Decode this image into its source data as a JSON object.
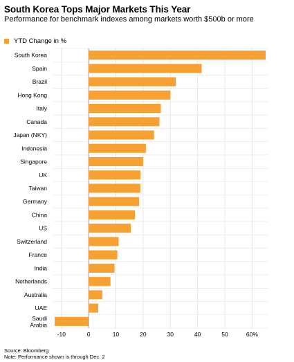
{
  "title": "South Korea Tops Major Markets This Year",
  "subtitle": "Performance for benchmark indexes among markets worth $500b or more",
  "legend": {
    "label": "YTD Change in %"
  },
  "footer": {
    "source": "Source: Bloomberg",
    "note": "Note: Performance shown is through Dec. 2"
  },
  "colors": {
    "bar": "#f7a133",
    "grid": "#e3e3e3",
    "axis": "#999999"
  },
  "chart_data": {
    "type": "bar",
    "orientation": "horizontal",
    "categories": [
      "South Korea",
      "Spain",
      "Brazil",
      "Hong Kong",
      "Italy",
      "Canada",
      "Japan (NKY)",
      "Indonesia",
      "Singapore",
      "UK",
      "Taiwan",
      "Germany",
      "China",
      "US",
      "Switzerland",
      "France",
      "India",
      "Netherlands",
      "Australia",
      "UAE",
      "Saudi Arabia"
    ],
    "category_lines": [
      [
        "South Korea"
      ],
      [
        "Spain"
      ],
      [
        "Brazil"
      ],
      [
        "Hong Kong"
      ],
      [
        "Italy"
      ],
      [
        "Canada"
      ],
      [
        "Japan (NKY)"
      ],
      [
        "Indonesia"
      ],
      [
        "Singapore"
      ],
      [
        "UK"
      ],
      [
        "Taiwan"
      ],
      [
        "Germany"
      ],
      [
        "China"
      ],
      [
        "US"
      ],
      [
        "Switzerland"
      ],
      [
        "France"
      ],
      [
        "India"
      ],
      [
        "Netherlands"
      ],
      [
        "Australia"
      ],
      [
        "UAE"
      ],
      [
        "Saudi",
        "Arabia"
      ]
    ],
    "series": [
      {
        "name": "YTD Change in %",
        "values": [
          65,
          41.5,
          32,
          30,
          26.5,
          26,
          24,
          21,
          20,
          19,
          19,
          18.5,
          17,
          15.5,
          11,
          10.5,
          9.5,
          8,
          5,
          3.5,
          -12.5
        ]
      }
    ],
    "xlim": [
      -13,
      66
    ],
    "xticks": [
      -10,
      0,
      10,
      20,
      30,
      40,
      50,
      60
    ],
    "xtick_labels": [
      "-10",
      "0",
      "10",
      "20",
      "30",
      "40",
      "50",
      "60%"
    ],
    "grid": true,
    "legend_position": "top-left"
  }
}
